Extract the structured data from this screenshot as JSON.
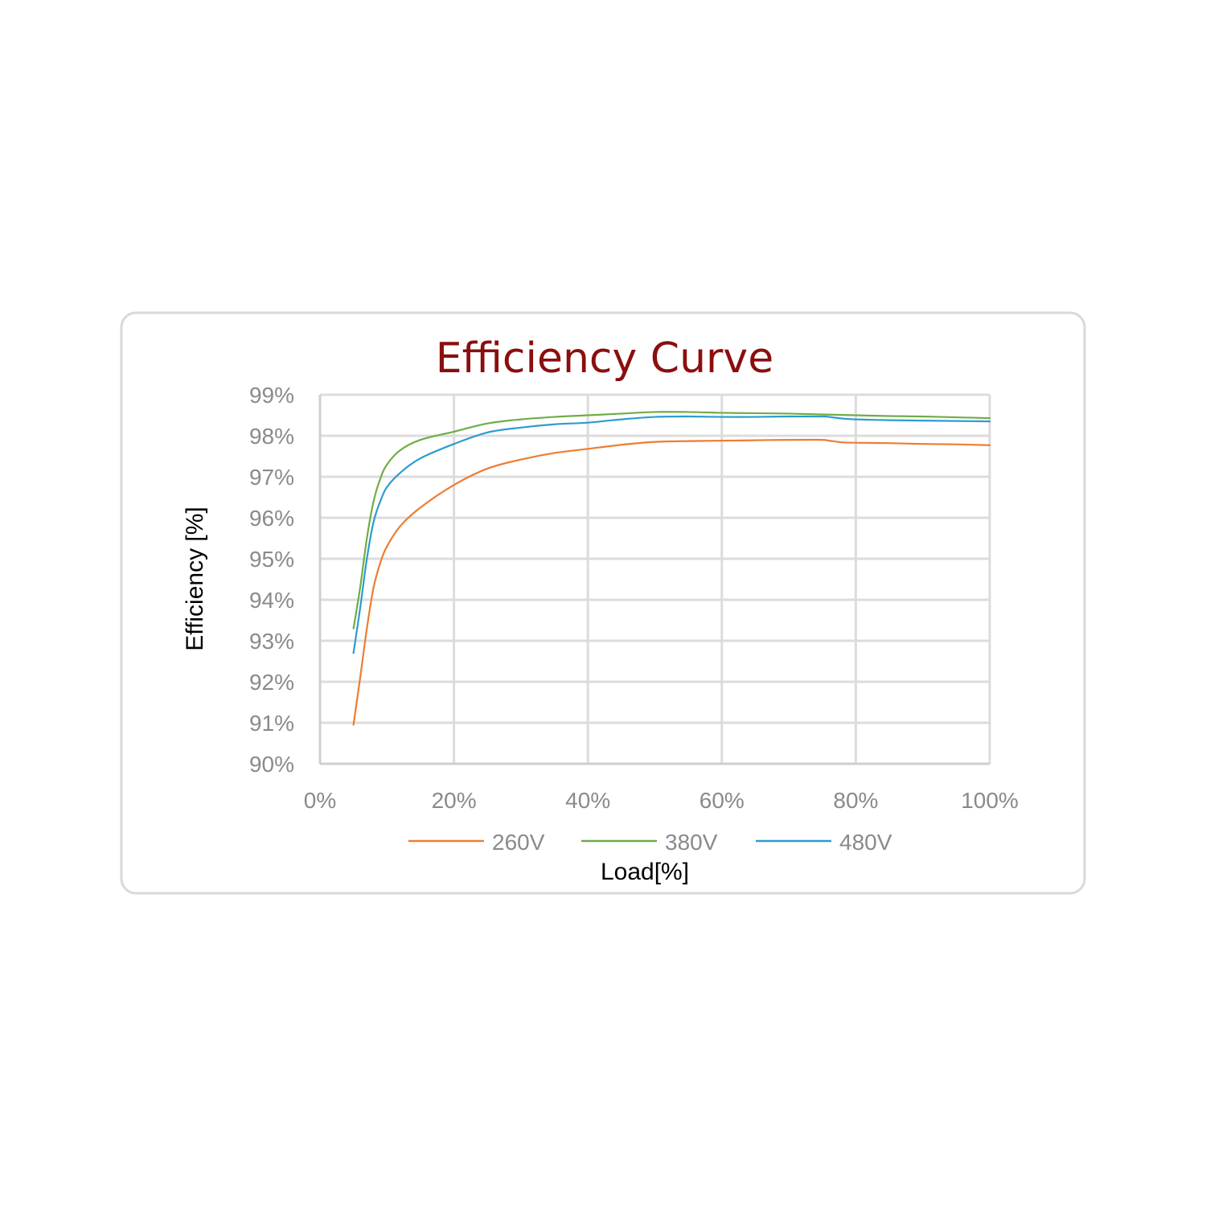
{
  "colors": {
    "title": "#8B0E0E",
    "series_260V": "#ED7D31",
    "series_380V": "#70AD47",
    "series_480V": "#2E9BD0"
  },
  "chart_data": {
    "type": "line",
    "title": "Efficiency Curve",
    "xlabel": "Load[%]",
    "ylabel": "Efficiency [%]",
    "xlim": [
      0,
      100
    ],
    "ylim": [
      90,
      99
    ],
    "x_ticks": [
      "0%",
      "20%",
      "40%",
      "60%",
      "80%",
      "100%"
    ],
    "y_ticks": [
      "90%",
      "91%",
      "92%",
      "93%",
      "94%",
      "95%",
      "96%",
      "97%",
      "98%",
      "99%"
    ],
    "grid": true,
    "legend": "bottom",
    "series": [
      {
        "name": "260V",
        "color": "#ED7D31",
        "x": [
          5,
          6,
          7,
          8,
          9,
          10,
          12,
          15,
          20,
          25,
          30,
          35,
          40,
          45,
          50,
          55,
          60,
          65,
          70,
          75,
          76,
          78,
          80,
          85,
          90,
          95,
          100
        ],
        "y": [
          90.95,
          92.1,
          93.3,
          94.3,
          94.9,
          95.3,
          95.8,
          96.25,
          96.8,
          97.2,
          97.42,
          97.58,
          97.68,
          97.78,
          97.85,
          97.87,
          97.88,
          97.89,
          97.9,
          97.9,
          97.88,
          97.84,
          97.83,
          97.82,
          97.8,
          97.79,
          97.77
        ]
      },
      {
        "name": "380V",
        "color": "#70AD47",
        "x": [
          5,
          6,
          7,
          8,
          9,
          10,
          12,
          15,
          20,
          25,
          30,
          35,
          40,
          45,
          50,
          55,
          60,
          65,
          70,
          75,
          80,
          85,
          90,
          95,
          100
        ],
        "y": [
          93.3,
          94.3,
          95.5,
          96.4,
          96.95,
          97.3,
          97.65,
          97.9,
          98.1,
          98.3,
          98.4,
          98.46,
          98.5,
          98.54,
          98.58,
          98.58,
          98.56,
          98.55,
          98.54,
          98.52,
          98.5,
          98.48,
          98.47,
          98.45,
          98.43
        ]
      },
      {
        "name": "480V",
        "color": "#2E9BD0",
        "x": [
          5,
          6,
          7,
          8,
          9,
          10,
          12,
          15,
          20,
          25,
          30,
          35,
          40,
          45,
          50,
          55,
          60,
          65,
          70,
          75,
          76,
          78,
          80,
          85,
          90,
          95,
          100
        ],
        "y": [
          92.7,
          93.8,
          95.0,
          95.9,
          96.4,
          96.75,
          97.1,
          97.45,
          97.8,
          98.08,
          98.2,
          98.28,
          98.32,
          98.4,
          98.46,
          98.47,
          98.46,
          98.46,
          98.47,
          98.47,
          98.46,
          98.42,
          98.4,
          98.38,
          98.37,
          98.36,
          98.35
        ]
      }
    ]
  }
}
